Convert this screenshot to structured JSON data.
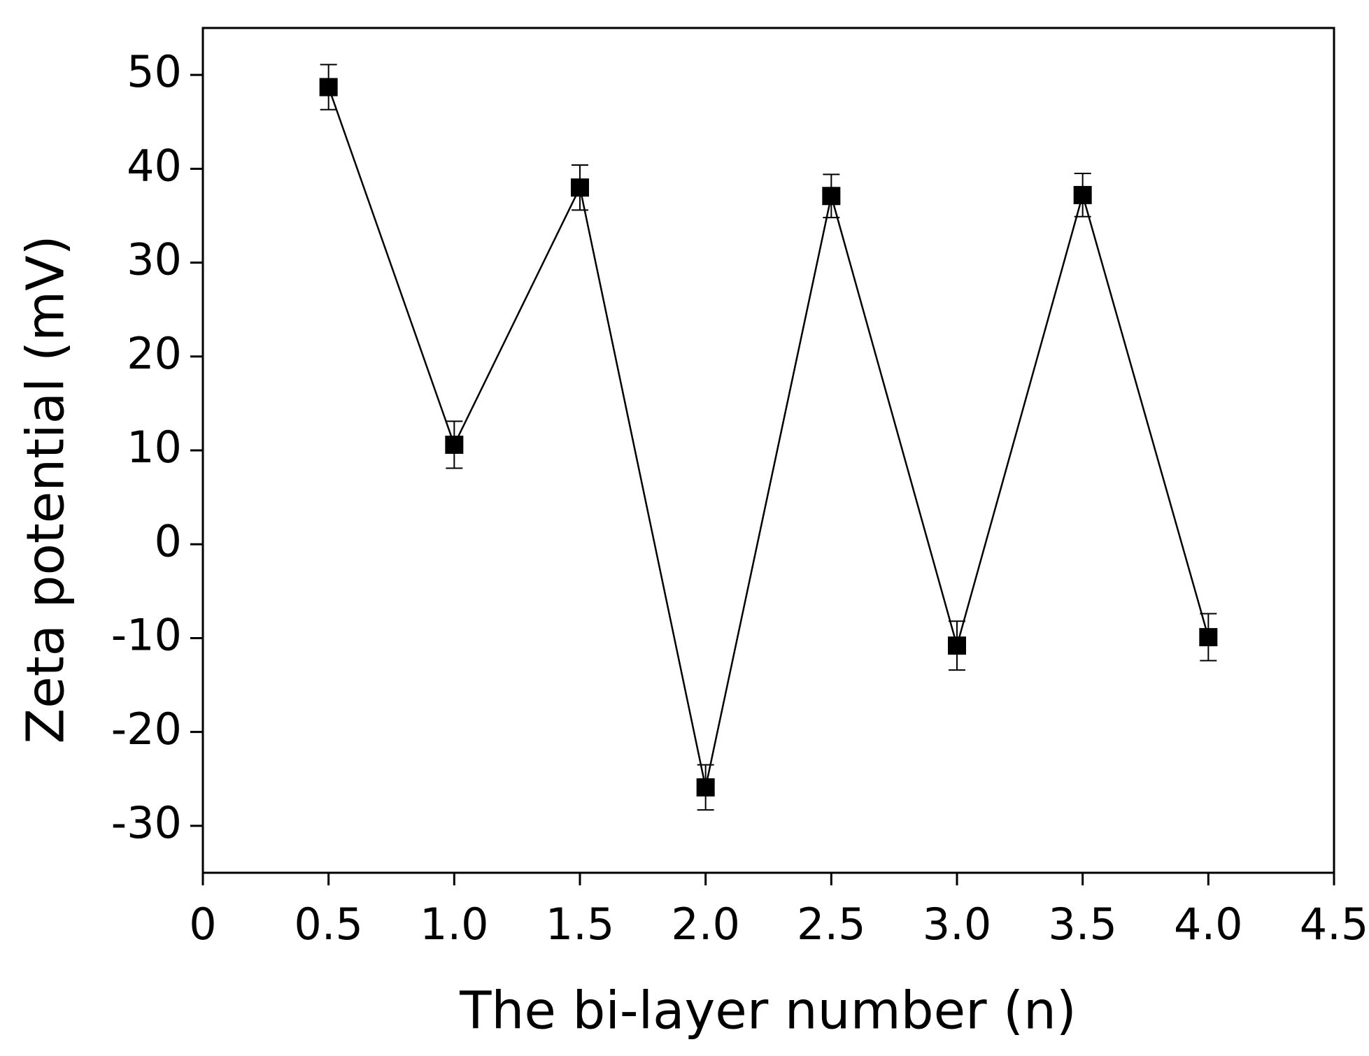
{
  "chart_data": {
    "type": "line",
    "x_label": "The bi-layer number (n)",
    "y_label": "Zeta potential (mV)",
    "x": [
      0.5,
      1.0,
      1.5,
      2.0,
      2.5,
      3.0,
      3.5,
      4.0
    ],
    "series": [
      {
        "color": "#000000",
        "values": [
          48.7,
          10.6,
          38.0,
          -25.9,
          37.1,
          -10.8,
          37.2,
          -9.9
        ],
        "errors": [
          2.4,
          2.5,
          2.4,
          2.4,
          2.3,
          2.6,
          2.3,
          2.5
        ]
      }
    ],
    "xlim": [
      0,
      4.5
    ],
    "xticks": [
      0,
      0.5,
      {
        "value": 1,
        "label": "1.0"
      },
      1.5,
      {
        "value": 2,
        "label": "2.0"
      },
      2.5,
      {
        "value": 3,
        "label": "3.0"
      },
      3.5,
      {
        "value": 4,
        "label": "4.0"
      },
      4.5
    ],
    "ylim": [
      -35,
      55
    ],
    "yticks": [
      -30,
      -20,
      -10,
      0,
      10,
      20,
      30,
      40,
      50
    ],
    "grid": false
  }
}
